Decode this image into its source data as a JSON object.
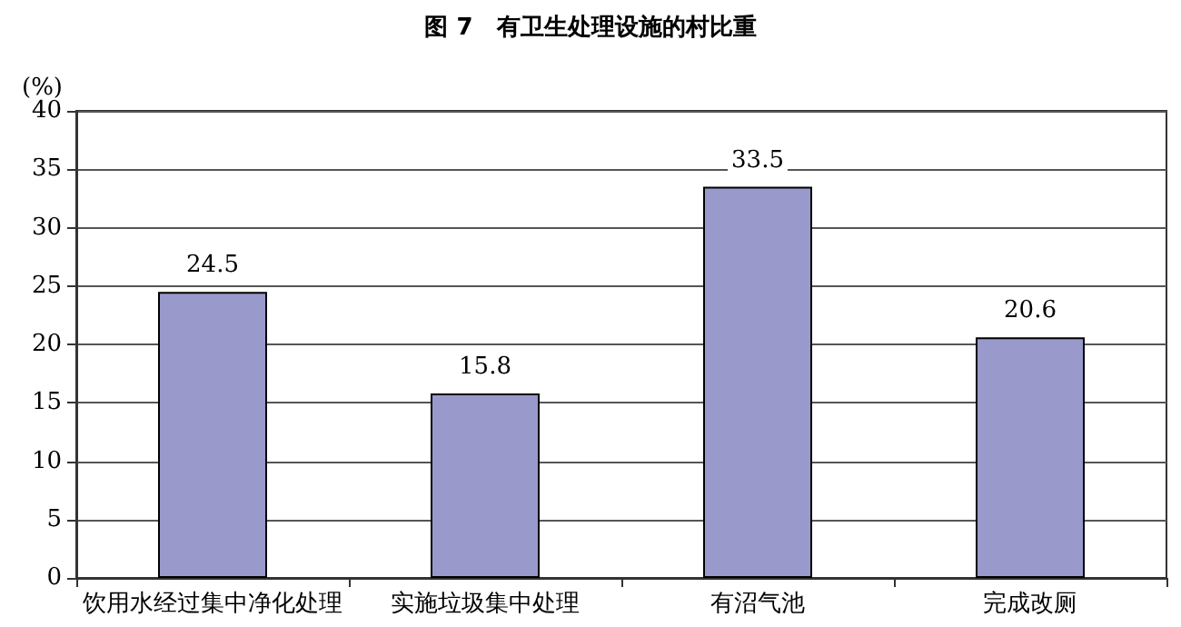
{
  "chart_data": {
    "type": "bar",
    "title": "图 7　有卫生处理设施的村比重",
    "ylabel": "(%)",
    "categories": [
      "饮用水经过集中净化处理",
      "实施垃圾集中处理",
      "有沼气池",
      "完成改厕"
    ],
    "values": [
      24.5,
      15.8,
      33.5,
      20.6
    ],
    "color": "#9999cc",
    "ylim": [
      0,
      40
    ],
    "yticks": [
      0,
      5,
      10,
      15,
      20,
      25,
      30,
      35,
      40
    ],
    "grid": "y",
    "data_labels": true
  }
}
